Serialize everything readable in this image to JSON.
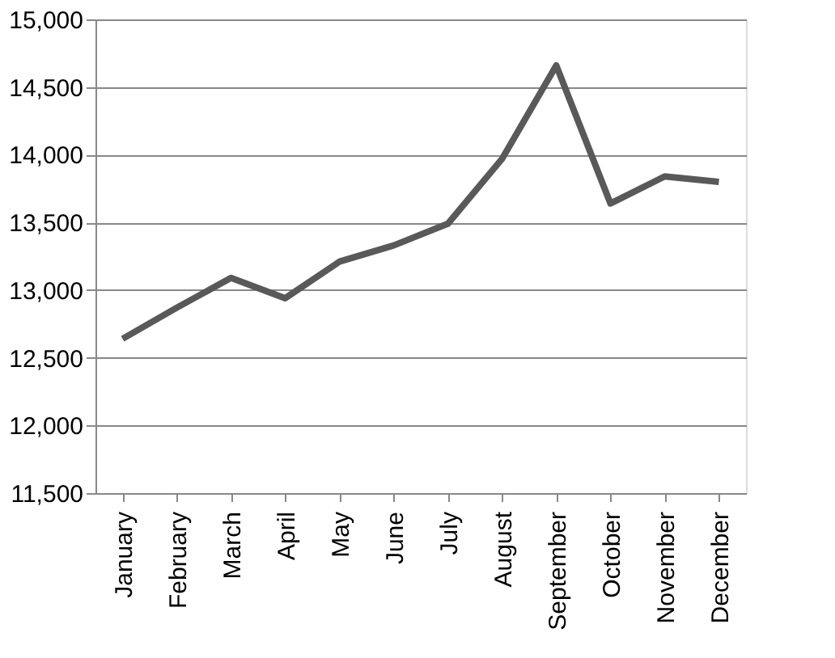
{
  "chart_data": {
    "type": "line",
    "categories": [
      "January",
      "February",
      "March",
      "April",
      "May",
      "June",
      "July",
      "August",
      "September",
      "October",
      "November",
      "December"
    ],
    "series": [
      {
        "color": "#595959",
        "values": [
          12640,
          12870,
          13090,
          12940,
          13210,
          13330,
          13490,
          13970,
          14660,
          13640,
          13840,
          13800
        ]
      }
    ],
    "ylim": [
      11500,
      15000
    ],
    "yticks": [
      {
        "value": 11500,
        "label": "11,500"
      },
      {
        "value": 12000,
        "label": "12,000"
      },
      {
        "value": 12500,
        "label": "12,500"
      },
      {
        "value": 13000,
        "label": "13,000"
      },
      {
        "value": 13500,
        "label": "13,500"
      },
      {
        "value": 14000,
        "label": "14,000"
      },
      {
        "value": 14500,
        "label": "14,500"
      },
      {
        "value": 15000,
        "label": "15,000"
      }
    ],
    "grid": "y",
    "legend": false,
    "marker": "none",
    "line_style": "solid"
  }
}
